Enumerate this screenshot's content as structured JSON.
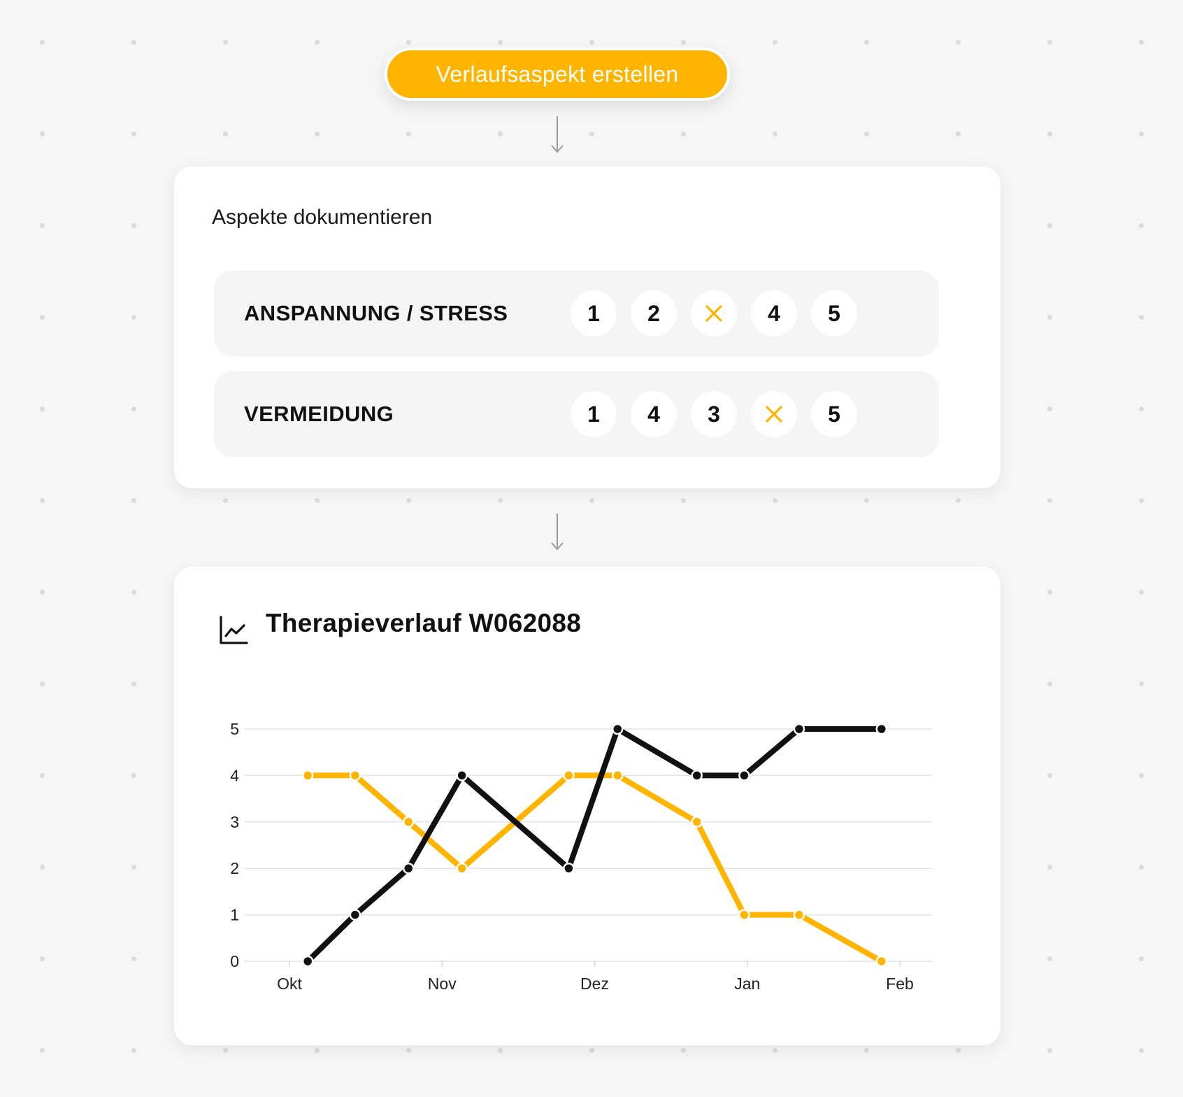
{
  "action_button": {
    "label": "Verlaufsaspekt erstellen"
  },
  "aspects_card": {
    "title": "Aspekte dokumentieren",
    "rows": [
      {
        "label": "ANSPANNUNG / STRESS",
        "options": [
          "1",
          "2",
          "3",
          "4",
          "5"
        ],
        "selected": "3"
      },
      {
        "label": "VERMEIDUNG",
        "options": [
          "1",
          "4",
          "3",
          "4",
          "5"
        ],
        "selected_index": 3
      }
    ],
    "accent_color": "#ffb400"
  },
  "chart_card": {
    "title": "Therapieverlauf W062088",
    "icon": "line-chart-icon"
  },
  "chart_data": {
    "type": "line",
    "title": "Therapieverlauf W062088",
    "xlabel": "",
    "ylabel": "",
    "x_ticks": [
      "Okt",
      "Nov",
      "Dez",
      "Jan",
      "Feb"
    ],
    "y_ticks": [
      "0",
      "1",
      "2",
      "3",
      "4",
      "5"
    ],
    "ylim": [
      0,
      5
    ],
    "xlim": [
      0,
      4
    ],
    "grid": "horizontal",
    "series": [
      {
        "color": "#ffb400",
        "x": [
          0.12,
          0.43,
          0.78,
          1.13,
          1.83,
          2.15,
          2.67,
          2.98,
          3.34,
          3.88
        ],
        "y": [
          4,
          4,
          3,
          2,
          4,
          4,
          3,
          1,
          1,
          0
        ]
      },
      {
        "color": "#111111",
        "x": [
          0.12,
          0.43,
          0.78,
          1.13,
          1.83,
          2.15,
          2.67,
          2.98,
          3.34,
          3.88
        ],
        "y": [
          0,
          1,
          2,
          4,
          2,
          5,
          4,
          4,
          5,
          5
        ]
      }
    ]
  }
}
